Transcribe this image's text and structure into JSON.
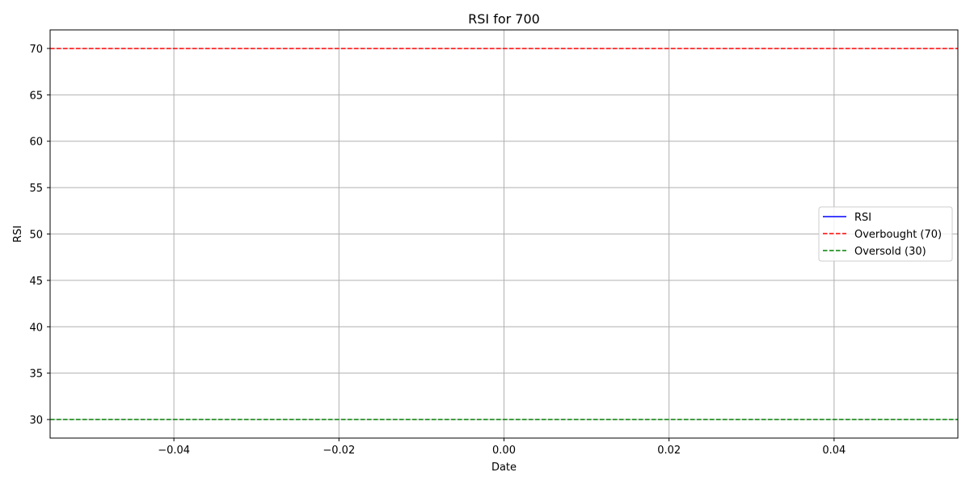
{
  "chart_data": {
    "type": "line",
    "title": "RSI for 700",
    "xlabel": "Date",
    "ylabel": "RSI",
    "xlim": [
      -0.055,
      0.055
    ],
    "ylim": [
      28,
      72
    ],
    "x_ticks": [
      -0.04,
      -0.02,
      0.0,
      0.02,
      0.04
    ],
    "x_tick_labels": [
      "−0.04",
      "−0.02",
      "0.00",
      "0.02",
      "0.04"
    ],
    "y_ticks": [
      30,
      35,
      40,
      45,
      50,
      55,
      60,
      65,
      70
    ],
    "y_tick_labels": [
      "30",
      "35",
      "40",
      "45",
      "50",
      "55",
      "60",
      "65",
      "70"
    ],
    "grid": true,
    "legend_position": "center-right",
    "series": [
      {
        "name": "RSI",
        "style": "solid",
        "color": "#0000ff",
        "x": [],
        "y": []
      },
      {
        "name": "Overbought (70)",
        "style": "dashed",
        "color": "#ff0000",
        "hline": 70
      },
      {
        "name": "Oversold (30)",
        "style": "dashed",
        "color": "#008000",
        "hline": 30
      }
    ]
  }
}
